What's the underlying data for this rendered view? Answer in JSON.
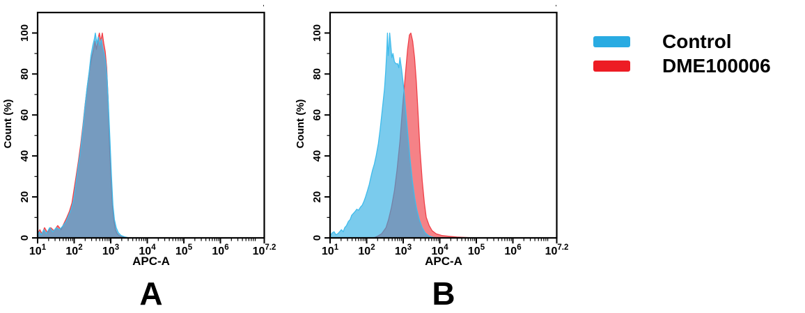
{
  "figure": {
    "background": "#ffffff"
  },
  "legend": {
    "items": [
      {
        "label": "Control",
        "color": "#29ABE2"
      },
      {
        "label": "DME100006",
        "color": "#ED1C24"
      }
    ]
  },
  "chart_data": [
    {
      "type": "area",
      "panel_label": "A",
      "xlabel": "APC-A",
      "ylabel": "Count (%)",
      "x_scale": "log10",
      "x_unit": "log10(APC-A fluorescence)",
      "y_unit": "percent of max count",
      "x_domain": [
        1,
        7.2
      ],
      "ylim": [
        0,
        110
      ],
      "x_ticks": [
        {
          "base": "10",
          "exp": "1",
          "value": 1
        },
        {
          "base": "10",
          "exp": "2",
          "value": 2
        },
        {
          "base": "10",
          "exp": "3",
          "value": 3
        },
        {
          "base": "10",
          "exp": "4",
          "value": 4
        },
        {
          "base": "10",
          "exp": "5",
          "value": 5
        },
        {
          "base": "10",
          "exp": "6",
          "value": 6
        },
        {
          "base": "10",
          "exp": "7.2",
          "value": 7.2
        }
      ],
      "y_ticks": [
        0,
        20,
        40,
        60,
        80,
        100
      ],
      "y_minor_step": 10,
      "corner_mark": "'",
      "series": [
        {
          "name": "Control",
          "color": "#29ABE2",
          "stroke": "#3FBCEC",
          "fill_opacity": 0.62,
          "z": 2,
          "points": [
            [
              1.0,
              1
            ],
            [
              1.05,
              3
            ],
            [
              1.1,
              1.5
            ],
            [
              1.17,
              4
            ],
            [
              1.24,
              2
            ],
            [
              1.33,
              5
            ],
            [
              1.42,
              3
            ],
            [
              1.51,
              5
            ],
            [
              1.6,
              4
            ],
            [
              1.7,
              6
            ],
            [
              1.78,
              8
            ],
            [
              1.85,
              11
            ],
            [
              1.92,
              14
            ],
            [
              1.99,
              19
            ],
            [
              2.05,
              27
            ],
            [
              2.11,
              35
            ],
            [
              2.17,
              42
            ],
            [
              2.23,
              52
            ],
            [
              2.29,
              63
            ],
            [
              2.35,
              73
            ],
            [
              2.41,
              81
            ],
            [
              2.46,
              89
            ],
            [
              2.51,
              94
            ],
            [
              2.55,
              97
            ],
            [
              2.58,
              100
            ],
            [
              2.62,
              95
            ],
            [
              2.66,
              98
            ],
            [
              2.7,
              94
            ],
            [
              2.74,
              97
            ],
            [
              2.78,
              93
            ],
            [
              2.82,
              90
            ],
            [
              2.86,
              86
            ],
            [
              2.9,
              78
            ],
            [
              2.94,
              64
            ],
            [
              2.98,
              48
            ],
            [
              3.02,
              30
            ],
            [
              3.06,
              16
            ],
            [
              3.1,
              9
            ],
            [
              3.15,
              5
            ],
            [
              3.21,
              2.5
            ],
            [
              3.28,
              1.2
            ],
            [
              3.38,
              0.5
            ],
            [
              3.5,
              0
            ]
          ]
        },
        {
          "name": "DME100006",
          "color": "#ED1C24",
          "stroke": "#EF4048",
          "fill_opacity": 0.55,
          "z": 1,
          "points": [
            [
              1.0,
              2
            ],
            [
              1.06,
              4
            ],
            [
              1.12,
              2
            ],
            [
              1.19,
              5
            ],
            [
              1.27,
              2.5
            ],
            [
              1.36,
              5
            ],
            [
              1.45,
              3.5
            ],
            [
              1.55,
              6
            ],
            [
              1.64,
              4
            ],
            [
              1.72,
              7
            ],
            [
              1.8,
              10
            ],
            [
              1.87,
              13
            ],
            [
              1.94,
              17
            ],
            [
              2.0,
              24
            ],
            [
              2.06,
              31
            ],
            [
              2.12,
              38
            ],
            [
              2.18,
              46
            ],
            [
              2.24,
              55
            ],
            [
              2.3,
              65
            ],
            [
              2.36,
              74
            ],
            [
              2.42,
              82
            ],
            [
              2.48,
              88
            ],
            [
              2.53,
              92
            ],
            [
              2.57,
              96
            ],
            [
              2.61,
              92
            ],
            [
              2.65,
              97
            ],
            [
              2.69,
              100
            ],
            [
              2.73,
              96
            ],
            [
              2.77,
              100
            ],
            [
              2.81,
              95
            ],
            [
              2.85,
              91
            ],
            [
              2.89,
              83
            ],
            [
              2.93,
              68
            ],
            [
              2.97,
              44
            ],
            [
              3.01,
              28
            ],
            [
              3.05,
              15
            ],
            [
              3.09,
              8
            ],
            [
              3.13,
              4
            ],
            [
              3.18,
              2
            ],
            [
              3.24,
              1
            ],
            [
              3.32,
              0.4
            ],
            [
              3.42,
              0
            ]
          ]
        }
      ]
    },
    {
      "type": "area",
      "panel_label": "B",
      "xlabel": "APC-A",
      "ylabel": "Count (%)",
      "x_scale": "log10",
      "x_unit": "log10(APC-A fluorescence)",
      "y_unit": "percent of max count",
      "x_domain": [
        1,
        7.2
      ],
      "ylim": [
        0,
        110
      ],
      "x_ticks": [
        {
          "base": "10",
          "exp": "1",
          "value": 1
        },
        {
          "base": "10",
          "exp": "2",
          "value": 2
        },
        {
          "base": "10",
          "exp": "3",
          "value": 3
        },
        {
          "base": "10",
          "exp": "4",
          "value": 4
        },
        {
          "base": "10",
          "exp": "5",
          "value": 5
        },
        {
          "base": "10",
          "exp": "6",
          "value": 6
        },
        {
          "base": "10",
          "exp": "7.2",
          "value": 7.2
        }
      ],
      "y_ticks": [
        0,
        20,
        40,
        60,
        80,
        100
      ],
      "y_minor_step": 10,
      "corner_mark": "'",
      "series": [
        {
          "name": "Control",
          "color": "#29ABE2",
          "stroke": "#3FBCEC",
          "fill_opacity": 0.62,
          "z": 2,
          "points": [
            [
              1.0,
              1
            ],
            [
              1.06,
              2.5
            ],
            [
              1.11,
              3
            ],
            [
              1.16,
              1.5
            ],
            [
              1.21,
              2
            ],
            [
              1.26,
              3
            ],
            [
              1.31,
              4
            ],
            [
              1.36,
              3
            ],
            [
              1.4,
              5
            ],
            [
              1.45,
              6
            ],
            [
              1.5,
              8
            ],
            [
              1.55,
              9
            ],
            [
              1.59,
              11
            ],
            [
              1.64,
              12
            ],
            [
              1.69,
              13
            ],
            [
              1.73,
              14
            ],
            [
              1.78,
              13.5
            ],
            [
              1.83,
              15
            ],
            [
              1.88,
              16
            ],
            [
              1.93,
              18
            ],
            [
              1.97,
              20
            ],
            [
              2.02,
              23
            ],
            [
              2.07,
              26
            ],
            [
              2.12,
              30
            ],
            [
              2.16,
              33
            ],
            [
              2.21,
              36
            ],
            [
              2.26,
              40
            ],
            [
              2.32,
              46
            ],
            [
              2.37,
              53
            ],
            [
              2.43,
              63
            ],
            [
              2.49,
              73
            ],
            [
              2.52,
              81
            ],
            [
              2.55,
              91
            ],
            [
              2.57,
              100
            ],
            [
              2.59,
              89
            ],
            [
              2.61,
              93
            ],
            [
              2.63,
              100
            ],
            [
              2.66,
              94
            ],
            [
              2.69,
              88
            ],
            [
              2.72,
              90
            ],
            [
              2.76,
              86
            ],
            [
              2.8,
              85
            ],
            [
              2.85,
              85
            ],
            [
              2.88,
              83
            ],
            [
              2.91,
              88
            ],
            [
              2.95,
              83
            ],
            [
              2.99,
              77
            ],
            [
              3.02,
              72
            ],
            [
              3.08,
              60
            ],
            [
              3.14,
              48
            ],
            [
              3.19,
              38
            ],
            [
              3.25,
              28
            ],
            [
              3.31,
              20
            ],
            [
              3.37,
              14
            ],
            [
              3.44,
              9
            ],
            [
              3.52,
              5
            ],
            [
              3.6,
              2.5
            ],
            [
              3.7,
              1
            ],
            [
              3.82,
              0.3
            ],
            [
              3.95,
              0
            ]
          ]
        },
        {
          "name": "DME100006",
          "color": "#ED1C24",
          "stroke": "#EF4048",
          "fill_opacity": 0.55,
          "z": 1,
          "points": [
            [
              2.2,
              0
            ],
            [
              2.3,
              0.8
            ],
            [
              2.41,
              2
            ],
            [
              2.53,
              5
            ],
            [
              2.6,
              9
            ],
            [
              2.68,
              15
            ],
            [
              2.76,
              23
            ],
            [
              2.83,
              33
            ],
            [
              2.91,
              47
            ],
            [
              2.98,
              63
            ],
            [
              3.06,
              80
            ],
            [
              3.12,
              92
            ],
            [
              3.17,
              99
            ],
            [
              3.21,
              100
            ],
            [
              3.26,
              96
            ],
            [
              3.31,
              88
            ],
            [
              3.36,
              76
            ],
            [
              3.41,
              60
            ],
            [
              3.46,
              43
            ],
            [
              3.52,
              28
            ],
            [
              3.58,
              17
            ],
            [
              3.63,
              10
            ],
            [
              3.71,
              6
            ],
            [
              3.79,
              3.5
            ],
            [
              3.9,
              2
            ],
            [
              4.05,
              1.2
            ],
            [
              4.24,
              0.8
            ],
            [
              4.47,
              0.4
            ],
            [
              4.7,
              0.2
            ],
            [
              4.93,
              0
            ]
          ]
        }
      ]
    }
  ]
}
